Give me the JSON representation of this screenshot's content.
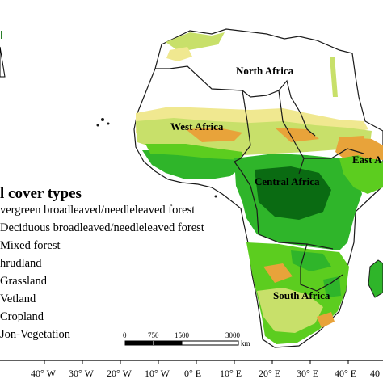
{
  "regions": [
    {
      "name": "North Africa"
    },
    {
      "name": "West Africa"
    },
    {
      "name": "Central Africa"
    },
    {
      "name": "East A"
    },
    {
      "name": "South Africa"
    }
  ],
  "legend": {
    "title": "l cover types",
    "items": [
      {
        "label": "vergreen broadleaved/needleleaved  forest",
        "color": "#0a6b12"
      },
      {
        "label": "Deciduous broadleaved/needleleaved  forest",
        "color": "#2fb52a"
      },
      {
        "label": "Mixed forest",
        "color": "#5ccd1f"
      },
      {
        "label": "hrudland",
        "color": "#e8a33a"
      },
      {
        "label": "Grassland",
        "color": "#c8e06a"
      },
      {
        "label": "Vetland",
        "color": "#2f8fd0"
      },
      {
        "label": "Cropland",
        "color": "#f0e890"
      },
      {
        "label": "Jon-Vegetation",
        "color": "#ffffff"
      }
    ]
  },
  "scale_bar": {
    "labels": [
      "0",
      "750",
      "1500",
      "3000"
    ],
    "unit": "km"
  },
  "axis": {
    "ticks": [
      "40° W",
      "30° W",
      "20° W",
      "10° W",
      "0° E",
      "10° E",
      "20° E",
      "30° E",
      "40° E",
      "40"
    ]
  },
  "colors": {
    "forest_dark": "#0a6b12",
    "forest": "#2fb52a",
    "mixed": "#5ccd1f",
    "grass": "#c8e06a",
    "shrub": "#e8a33a",
    "crop": "#f0e890",
    "desert": "#ffffff",
    "border": "#1a1a1a"
  }
}
